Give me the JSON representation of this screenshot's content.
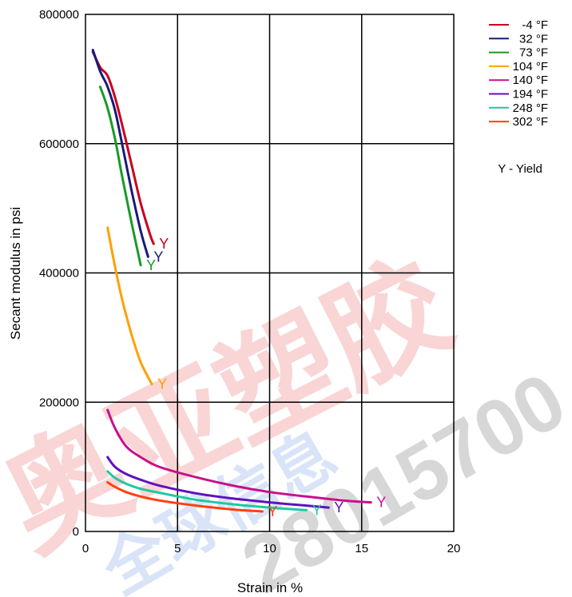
{
  "chart_data": {
    "type": "line",
    "title": "",
    "xlabel": "Strain in %",
    "ylabel": "Secant modulus in psi",
    "xlim": [
      0,
      20
    ],
    "ylim": [
      0,
      800000
    ],
    "xticks": [
      0,
      5,
      10,
      15,
      20
    ],
    "yticks": [
      0,
      200000,
      400000,
      600000,
      800000
    ],
    "x_tick_labels": [
      "0",
      "5",
      "10",
      "15",
      "20"
    ],
    "y_tick_labels": [
      "0",
      "200000",
      "400000",
      "600000",
      "800000"
    ],
    "grid": true,
    "legend_position": "top-right (outside plot)",
    "yield_marker": "Y",
    "legend_note": "Y - Yield",
    "series": [
      {
        "name": "-4 °F",
        "color": "#c8001e",
        "x": [
          0.4,
          0.8,
          1.2,
          1.6,
          2.0,
          2.5,
          3.0,
          3.5,
          3.7
        ],
        "y": [
          742000,
          718000,
          705000,
          672000,
          628000,
          568000,
          508000,
          460000,
          445000
        ],
        "yield": [
          3.7,
          445000
        ]
      },
      {
        "name": "32 °F",
        "color": "#1a1a78",
        "x": [
          0.4,
          0.8,
          1.2,
          1.6,
          2.0,
          2.5,
          3.0,
          3.4
        ],
        "y": [
          745000,
          712000,
          688000,
          652000,
          598000,
          528000,
          465000,
          425000
        ],
        "yield": [
          3.4,
          425000
        ]
      },
      {
        "name": "73 °F",
        "color": "#1a9a28",
        "x": [
          0.8,
          1.2,
          1.6,
          2.0,
          2.5,
          3.0
        ],
        "y": [
          688000,
          655000,
          608000,
          548000,
          478000,
          412000
        ],
        "yield": [
          3.0,
          412000
        ]
      },
      {
        "name": "104 °F",
        "color": "#ffa000",
        "x": [
          1.2,
          1.6,
          2.0,
          2.5,
          3.0,
          3.6
        ],
        "y": [
          470000,
          410000,
          358000,
          305000,
          262000,
          228000
        ],
        "yield": [
          3.6,
          228000
        ]
      },
      {
        "name": "140 °F",
        "color": "#c8108c",
        "x": [
          1.2,
          1.6,
          2.2,
          3.0,
          4.0,
          6.0,
          8.0,
          10.0,
          12.0,
          14.0,
          15.5
        ],
        "y": [
          188000,
          160000,
          132000,
          115000,
          100000,
          84000,
          71000,
          61000,
          54000,
          48000,
          45000
        ],
        "yield": [
          15.5,
          45000
        ]
      },
      {
        "name": "194 °F",
        "color": "#6010c0",
        "x": [
          1.2,
          1.6,
          2.2,
          3.0,
          4.0,
          6.0,
          8.0,
          10.0,
          12.0,
          13.2
        ],
        "y": [
          115000,
          100000,
          89000,
          80000,
          71000,
          59000,
          51000,
          45000,
          40000,
          37000
        ],
        "yield": [
          13.2,
          37000
        ]
      },
      {
        "name": "248 °F",
        "color": "#20c8a0",
        "x": [
          1.2,
          1.6,
          2.2,
          3.0,
          4.0,
          6.0,
          8.0,
          10.0,
          12.0
        ],
        "y": [
          93000,
          83000,
          74000,
          66000,
          60000,
          49000,
          42000,
          37000,
          33000
        ],
        "yield": [
          12.0,
          33000
        ]
      },
      {
        "name": "302 °F",
        "color": "#ff4010",
        "x": [
          1.2,
          1.6,
          2.2,
          3.0,
          4.0,
          6.0,
          8.0,
          9.6
        ],
        "y": [
          76000,
          69000,
          61000,
          54000,
          48000,
          40000,
          34000,
          31000
        ],
        "yield": [
          9.6,
          31000
        ]
      }
    ]
  },
  "watermark": {
    "line1": "奥亚塑胶",
    "line2": "全球信息",
    "line3": "28015700"
  }
}
